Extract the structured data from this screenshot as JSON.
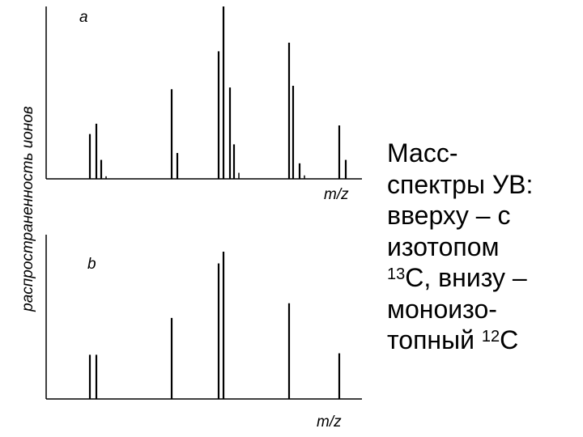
{
  "y_axis_label": "распространенность ионов",
  "caption": {
    "line1": "Масс-",
    "line2": "спектры УВ:",
    "line3": "вверху – с",
    "line4": "изотопом",
    "line5_sup": "13",
    "line5_rest": "С, внизу –",
    "line6": "моноизо-",
    "line7_text": "топный ",
    "line7_sup": "12",
    "line7_end": "С"
  },
  "chart_data": [
    {
      "type": "bar",
      "panel_label": "a",
      "xlabel": "m/z",
      "ylabel": "распространенность ионов",
      "ylim": [
        0,
        100
      ],
      "grid": false,
      "x": [
        111,
        119,
        125,
        131,
        212,
        219,
        270,
        276,
        284,
        289,
        295,
        357,
        362,
        370,
        376,
        419,
        427
      ],
      "values": [
        26,
        32,
        11,
        1.5,
        52,
        15,
        74,
        100,
        53,
        20,
        3.5,
        79,
        54,
        9,
        2,
        31,
        11
      ]
    },
    {
      "type": "bar",
      "panel_label": "b",
      "xlabel": "m/z",
      "ylim": [
        0,
        100
      ],
      "grid": false,
      "x": [
        111,
        119,
        212,
        270,
        276,
        357,
        419
      ],
      "values": [
        30,
        30,
        55,
        92,
        100,
        65,
        31
      ]
    }
  ]
}
